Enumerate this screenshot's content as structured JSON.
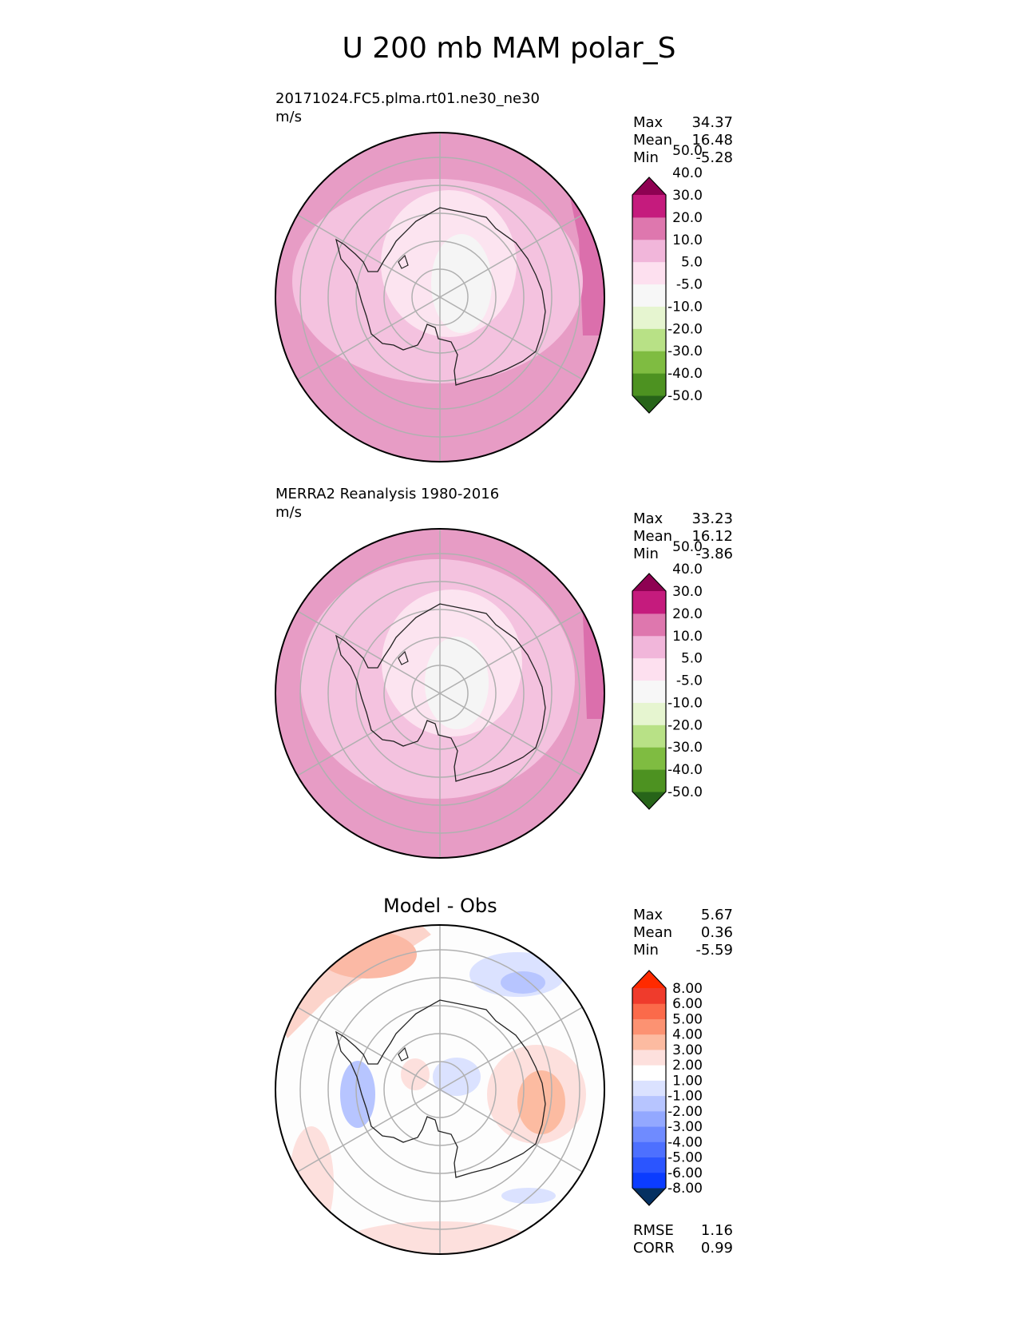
{
  "title": "U 200 mb MAM polar_S",
  "panels": [
    {
      "name": "test",
      "title_line1": "20171024.FC5.plma.rt01.ne30_ne30",
      "units": "m/s",
      "stats": {
        "Max": "34.37",
        "Mean": "16.48",
        "Min": "-5.28"
      },
      "colorbar": {
        "colors": [
          "#276419",
          "#4d9221",
          "#7fbc41",
          "#b8e186",
          "#e6f5d0",
          "#f7f7f7",
          "#fde0ef",
          "#f1b6da",
          "#de77ae",
          "#c51b7d",
          "#8e0152"
        ],
        "labels": [
          "-50.0",
          "-40.0",
          "-30.0",
          "-20.0",
          "-10.0",
          "-5.0",
          "5.0",
          "10.0",
          "20.0",
          "30.0",
          "40.0",
          "50.0"
        ]
      }
    },
    {
      "name": "reference",
      "title_line1": "MERRA2 Reanalysis 1980-2016",
      "units": "m/s",
      "stats": {
        "Max": "33.23",
        "Mean": "16.12",
        "Min": "-3.86"
      },
      "colorbar": {
        "colors": [
          "#276419",
          "#4d9221",
          "#7fbc41",
          "#b8e186",
          "#e6f5d0",
          "#f7f7f7",
          "#fde0ef",
          "#f1b6da",
          "#de77ae",
          "#c51b7d",
          "#8e0152"
        ],
        "labels": [
          "-50.0",
          "-40.0",
          "-30.0",
          "-20.0",
          "-10.0",
          "-5.0",
          "5.0",
          "10.0",
          "20.0",
          "30.0",
          "40.0",
          "50.0"
        ]
      }
    },
    {
      "name": "difference",
      "center_title": "Model - Obs",
      "stats": {
        "Max": "5.67",
        "Mean": "0.36",
        "Min": "-5.59"
      },
      "metrics": {
        "RMSE": "1.16",
        "CORR": "0.99"
      },
      "colorbar": {
        "colors": [
          "#053061",
          "#0b3cff",
          "#2b55ff",
          "#4d70ff",
          "#6f8bff",
          "#93a8ff",
          "#b7c5ff",
          "#dbe2ff",
          "#ffffff",
          "#fde0dd",
          "#fcbba1",
          "#fc9272",
          "#fb6a4a",
          "#ef3b2c",
          "#ff2a00"
        ],
        "labels": [
          "-8.00",
          "-6.00",
          "-5.00",
          "-4.00",
          "-3.00",
          "-2.00",
          "-1.00",
          "1.00",
          "2.00",
          "3.00",
          "4.00",
          "5.00",
          "6.00",
          "8.00"
        ]
      }
    }
  ]
}
